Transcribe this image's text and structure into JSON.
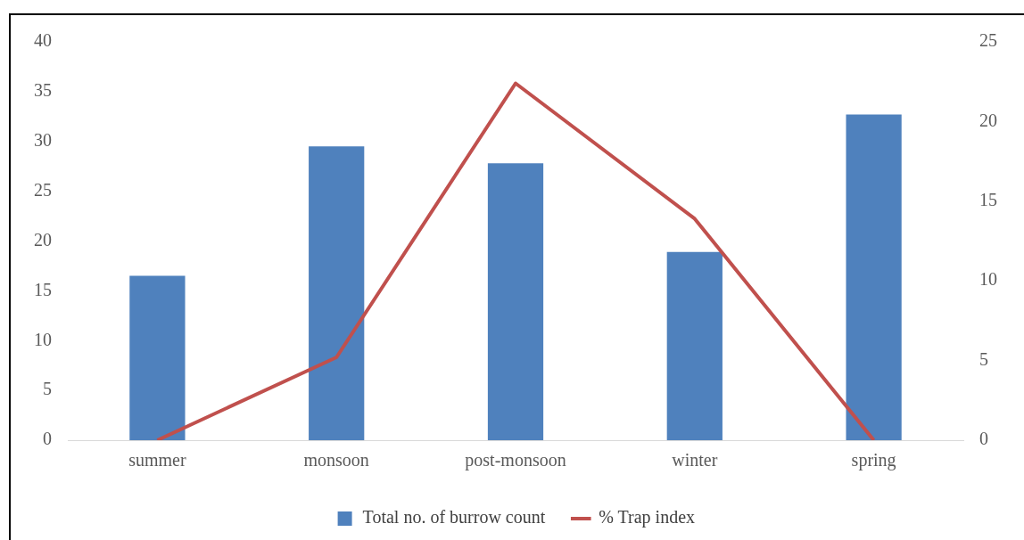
{
  "chart_data": {
    "type": "bar",
    "categories": [
      "summer",
      "monsoon",
      "post-monsoon",
      "winter",
      "spring"
    ],
    "series": [
      {
        "name": "Total no. of burrow count",
        "color": "#4f81bd",
        "values": [
          16.5,
          29.5,
          27.8,
          18.9,
          32.7
        ]
      },
      {
        "name": "% Trap index",
        "type": "line",
        "axis": "y2",
        "color": "#c0504d",
        "values": [
          0,
          5.2,
          22.4,
          13.9,
          0
        ]
      }
    ],
    "ylim": [
      0,
      40
    ],
    "yticks": [
      0,
      5,
      10,
      15,
      20,
      25,
      30,
      35,
      40
    ],
    "y2lim": [
      0,
      25
    ],
    "y2ticks": [
      0,
      5,
      10,
      15,
      20,
      25
    ],
    "grid": false,
    "legend": "bottom",
    "marker": "none",
    "line_style": "solid"
  }
}
